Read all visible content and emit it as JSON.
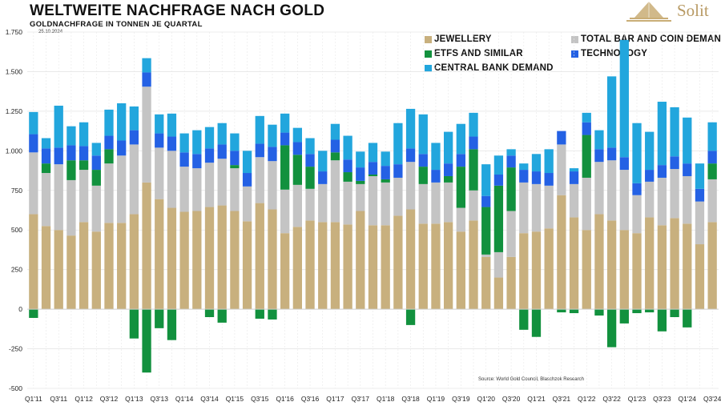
{
  "header": {
    "title": "WELTWEITE NACHFRAGE NACH GOLD",
    "subtitle": "GOLDNACHFRAGE IN TONNEN JE QUARTAL",
    "date": "25.10.2024",
    "logo_text": "Solit",
    "source": "Source: World Gold Council, Blaschzok Research"
  },
  "colors": {
    "jewellery": "#c8b07e",
    "bar_coin": "#c4c4c4",
    "etfs": "#12913e",
    "technology": "#2461e4",
    "central_bank": "#22a6dd",
    "logo": "#b89a64"
  },
  "legend": {
    "jewellery": "JEWELLERY",
    "bar_coin": "TOTAL BAR AND COIN DEMAND",
    "etfs": "ETFS AND SIMILAR",
    "technology": "TECHNOLOGY",
    "central_bank": "CENTRAL BANK DEMAND"
  },
  "chart_data": {
    "type": "bar",
    "stacked": true,
    "title": "WELTWEITE NACHFRAGE NACH GOLD",
    "ylabel": "GOLDNACHFRAGE IN TONNEN JE QUARTAL",
    "ylim": [
      -500,
      1750
    ],
    "yticks": [
      -500,
      -250,
      0,
      250,
      500,
      750,
      1000,
      1250,
      1500,
      1750
    ],
    "ytick_labels": [
      "-500",
      "-250",
      "0",
      "250",
      "500",
      "750",
      "1.000",
      "1.250",
      "1.500",
      "1.750"
    ],
    "grid": true,
    "legend_position": "top-right",
    "categories": [
      "Q1'11",
      "Q2'11",
      "Q3'11",
      "Q4'11",
      "Q1'12",
      "Q2'12",
      "Q3'12",
      "Q4'12",
      "Q1'13",
      "Q2'13",
      "Q3'13",
      "Q4'13",
      "Q1'14",
      "Q2'14",
      "Q3'14",
      "Q4'14",
      "Q1'15",
      "Q2'15",
      "Q3'15",
      "Q4'15",
      "Q1'16",
      "Q2'16",
      "Q3'16",
      "Q4'16",
      "Q1'17",
      "Q2'17",
      "Q3'17",
      "Q4'17",
      "Q1'18",
      "Q2'18",
      "Q3'18",
      "Q4'18",
      "Q1'19",
      "Q2'19",
      "Q3'19",
      "Q4'19",
      "Q1'20",
      "Q2'20",
      "Q3'20",
      "Q4'20",
      "Q1'21",
      "Q2'21",
      "Q3'21",
      "Q4'21",
      "Q1'22",
      "Q2'22",
      "Q3'22",
      "Q4'22",
      "Q1'23",
      "Q2'23",
      "Q3'23",
      "Q4'23",
      "Q1'24",
      "Q2'24",
      "Q3'24"
    ],
    "x_tick_labels": [
      "Q1'11",
      "Q3'11",
      "Q1'12",
      "Q3'12",
      "Q1'13",
      "Q3'13",
      "Q1'14",
      "Q3'14",
      "Q1'15",
      "Q3'15",
      "Q1'16",
      "Q3'16",
      "Q1'17",
      "Q3'17",
      "Q1'18",
      "Q3'18",
      "Q1'19",
      "Q3'19",
      "Q1'20",
      "Q3'20",
      "Q1'21",
      "Q3'21",
      "Q1'22",
      "Q3'22",
      "Q1'23",
      "Q3'23",
      "Q1'24",
      "Q3'24"
    ],
    "series": [
      {
        "name": "JEWELLERY",
        "key": "jewellery",
        "values": [
          600,
          525,
          500,
          465,
          550,
          490,
          545,
          545,
          600,
          800,
          695,
          640,
          615,
          620,
          645,
          655,
          620,
          555,
          670,
          630,
          480,
          520,
          560,
          550,
          550,
          535,
          620,
          530,
          530,
          590,
          630,
          540,
          540,
          550,
          490,
          560,
          330,
          200,
          330,
          480,
          490,
          510,
          720,
          580,
          500,
          600,
          560,
          500,
          480,
          580,
          530,
          575,
          540,
          410,
          550
        ]
      },
      {
        "name": "TOTAL BAR AND COIN DEMAND",
        "key": "bar_coin",
        "values": [
          390,
          335,
          415,
          350,
          330,
          290,
          375,
          425,
          440,
          605,
          325,
          360,
          285,
          270,
          280,
          295,
          270,
          220,
          290,
          305,
          275,
          265,
          200,
          240,
          390,
          270,
          170,
          310,
          270,
          240,
          300,
          250,
          260,
          250,
          150,
          190,
          15,
          160,
          290,
          320,
          300,
          270,
          320,
          210,
          330,
          330,
          380,
          380,
          240,
          225,
          300,
          310,
          300,
          270,
          270
        ]
      },
      {
        "name": "ETFS AND SIMILAR",
        "key": "etfs",
        "values": [
          -55,
          60,
          0,
          125,
          60,
          100,
          90,
          0,
          -185,
          -400,
          -120,
          -195,
          0,
          0,
          -50,
          -85,
          20,
          0,
          -60,
          -65,
          280,
          190,
          140,
          0,
          50,
          60,
          20,
          10,
          20,
          0,
          -100,
          110,
          0,
          40,
          260,
          260,
          300,
          420,
          275,
          -130,
          -175,
          0,
          -20,
          -25,
          270,
          -40,
          -240,
          -90,
          -25,
          -20,
          -140,
          -50,
          -115,
          0,
          100
        ]
      },
      {
        "name": "TECHNOLOGY",
        "key": "technology",
        "values": [
          115,
          95,
          105,
          95,
          90,
          90,
          85,
          95,
          90,
          90,
          90,
          90,
          90,
          90,
          90,
          90,
          90,
          85,
          85,
          90,
          80,
          80,
          80,
          80,
          80,
          80,
          85,
          80,
          85,
          85,
          85,
          80,
          80,
          80,
          80,
          80,
          70,
          70,
          75,
          80,
          80,
          80,
          85,
          80,
          80,
          80,
          80,
          80,
          75,
          75,
          80,
          80,
          80,
          80,
          80
        ]
      },
      {
        "name": "CENTRAL BANK DEMAND",
        "key": "central_bank",
        "values": [
          140,
          65,
          265,
          120,
          150,
          80,
          165,
          235,
          150,
          90,
          120,
          145,
          120,
          150,
          135,
          135,
          110,
          140,
          175,
          140,
          120,
          90,
          100,
          130,
          100,
          150,
          100,
          120,
          90,
          260,
          250,
          250,
          170,
          200,
          190,
          150,
          200,
          120,
          40,
          40,
          110,
          150,
          0,
          20,
          60,
          120,
          450,
          740,
          380,
          240,
          400,
          310,
          290,
          160,
          180
        ]
      }
    ]
  }
}
